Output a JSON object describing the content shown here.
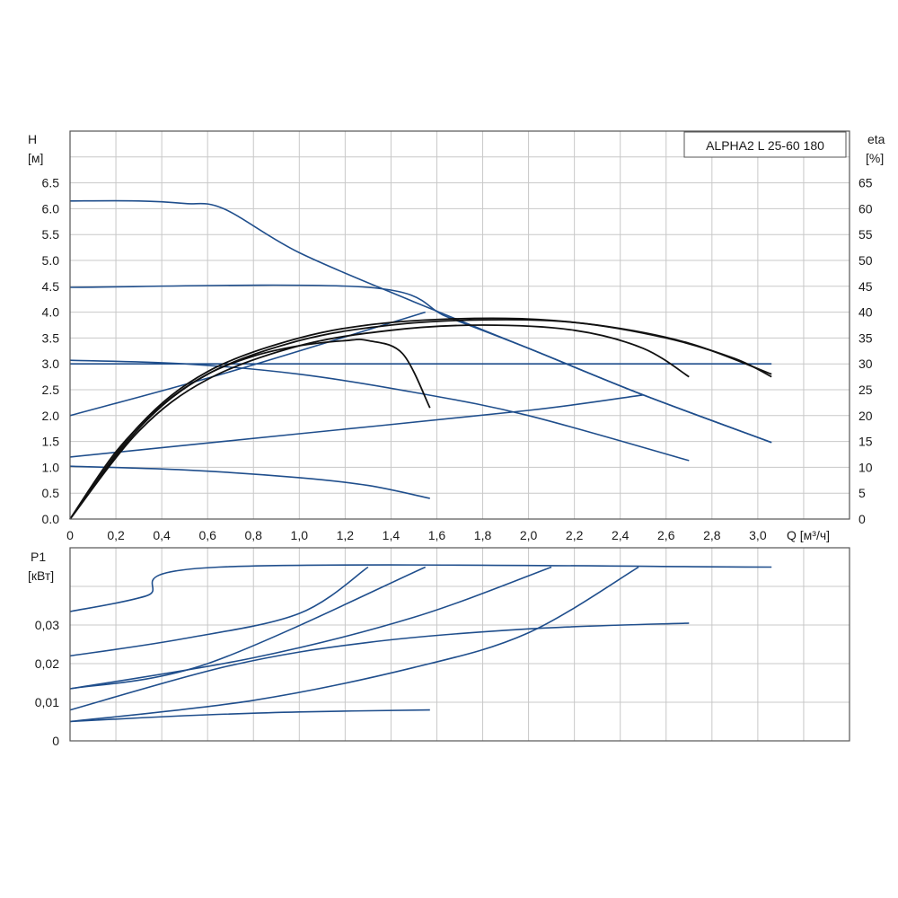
{
  "chart_data": [
    {
      "type": "line",
      "title": "ALPHA2 L 25-60 180",
      "xlabel": "Q [м³/ч]",
      "ylabel_left": [
        "H",
        "[м]"
      ],
      "ylabel_right": [
        "eta",
        "[%]"
      ],
      "xlim": [
        0,
        3.4
      ],
      "ylim_left": [
        0,
        7.5
      ],
      "ylim_right": [
        0,
        75
      ],
      "x_ticks": [
        "0",
        "0,2",
        "0,4",
        "0,6",
        "0,8",
        "1,0",
        "1,2",
        "1,4",
        "1,6",
        "1,8",
        "2,0",
        "2,2",
        "2,4",
        "2,6",
        "2,8",
        "3,0"
      ],
      "y_left_ticks": [
        "0.0",
        "0.5",
        "1.0",
        "1.5",
        "2.0",
        "2.5",
        "3.0",
        "3.5",
        "4.0",
        "4.5",
        "5.0",
        "5.5",
        "6.0",
        "6.5"
      ],
      "y_right_ticks": [
        "0",
        "5",
        "10",
        "15",
        "20",
        "25",
        "30",
        "35",
        "40",
        "45",
        "50",
        "55",
        "60",
        "65"
      ],
      "grid": true,
      "head_series": [
        {
          "points": [
            [
              0,
              6.15
            ],
            [
              0.3,
              6.15
            ],
            [
              0.5,
              6.1
            ],
            [
              0.67,
              6.0
            ],
            [
              1.0,
              5.15
            ],
            [
              1.5,
              4.2
            ],
            [
              2.0,
              3.3
            ],
            [
              2.5,
              2.4
            ],
            [
              3.06,
              1.48
            ]
          ]
        },
        {
          "points": [
            [
              0,
              4.48
            ],
            [
              1.3,
              4.48
            ],
            [
              1.65,
              3.9
            ],
            [
              2.0,
              3.3
            ],
            [
              2.5,
              2.4
            ],
            [
              3.06,
              1.48
            ]
          ]
        },
        {
          "points": [
            [
              0,
              3.0
            ],
            [
              3.06,
              3.0
            ]
          ]
        },
        {
          "points": [
            [
              0,
              3.07
            ],
            [
              0.5,
              3.0
            ],
            [
              1.0,
              2.8
            ],
            [
              1.5,
              2.45
            ],
            [
              2.0,
              2.0
            ],
            [
              2.7,
              1.13
            ]
          ]
        },
        {
          "points": [
            [
              0,
              2.0
            ],
            [
              0.7,
              2.85
            ],
            [
              1.55,
              4.0
            ]
          ]
        },
        {
          "points": [
            [
              0,
              1.2
            ],
            [
              1.0,
              1.65
            ],
            [
              2.0,
              2.1
            ],
            [
              2.5,
              2.4
            ]
          ]
        },
        {
          "points": [
            [
              0,
              1.02
            ],
            [
              0.5,
              0.95
            ],
            [
              1.0,
              0.8
            ],
            [
              1.3,
              0.65
            ],
            [
              1.57,
              0.4
            ]
          ]
        }
      ],
      "eta_series": [
        {
          "points": [
            [
              0,
              0
            ],
            [
              0.2,
              13
            ],
            [
              0.4,
              22
            ],
            [
              0.6,
              28
            ],
            [
              0.8,
              31.5
            ],
            [
              1.0,
              33.5
            ],
            [
              1.2,
              34.5
            ],
            [
              1.3,
              34.5
            ],
            [
              1.45,
              32
            ],
            [
              1.57,
              21.5
            ]
          ]
        },
        {
          "points": [
            [
              0,
              0
            ],
            [
              0.3,
              17
            ],
            [
              0.6,
              27
            ],
            [
              1.0,
              33.5
            ],
            [
              1.4,
              36.5
            ],
            [
              1.8,
              37.5
            ],
            [
              2.2,
              36.5
            ],
            [
              2.5,
              33
            ],
            [
              2.7,
              27.5
            ]
          ]
        },
        {
          "points": [
            [
              0,
              0
            ],
            [
              0.3,
              17.5
            ],
            [
              0.6,
              28
            ],
            [
              1.0,
              34.5
            ],
            [
              1.4,
              37.5
            ],
            [
              1.8,
              38.5
            ],
            [
              2.2,
              38
            ],
            [
              2.6,
              35
            ],
            [
              2.9,
              31
            ],
            [
              3.06,
              27.5
            ]
          ]
        },
        {
          "points": [
            [
              0,
              0
            ],
            [
              0.3,
              18
            ],
            [
              0.6,
              28.5
            ],
            [
              1.0,
              35
            ],
            [
              1.4,
              38
            ],
            [
              1.9,
              38.8
            ],
            [
              2.3,
              37.5
            ],
            [
              2.7,
              34
            ],
            [
              3.06,
              28
            ]
          ]
        }
      ]
    },
    {
      "type": "line",
      "ylabel": [
        "P1",
        "[кВт]"
      ],
      "xlim": [
        0,
        3.4
      ],
      "ylim": [
        0,
        0.05
      ],
      "y_ticks": [
        "0",
        "0,01",
        "0,02",
        "0,03"
      ],
      "grid": true,
      "series": [
        {
          "points": [
            [
              0,
              0.0335
            ],
            [
              0.33,
              0.0375
            ],
            [
              0.65,
              0.045
            ],
            [
              3.06,
              0.045
            ]
          ]
        },
        {
          "points": [
            [
              0,
              0.022
            ],
            [
              0.5,
              0.0265
            ],
            [
              1.0,
              0.033
            ],
            [
              1.3,
              0.045
            ]
          ]
        },
        {
          "points": [
            [
              0,
              0.0135
            ],
            [
              0.6,
              0.02
            ],
            [
              1.55,
              0.045
            ]
          ]
        },
        {
          "points": [
            [
              0,
              0.0135
            ],
            [
              0.8,
              0.0215
            ],
            [
              1.5,
              0.032
            ],
            [
              2.1,
              0.045
            ]
          ]
        },
        {
          "points": [
            [
              0,
              0.008
            ],
            [
              0.7,
              0.0195
            ],
            [
              1.3,
              0.0255
            ],
            [
              2.0,
              0.029
            ],
            [
              2.7,
              0.0305
            ]
          ]
        },
        {
          "points": [
            [
              0,
              0.005
            ],
            [
              0.8,
              0.0105
            ],
            [
              1.5,
              0.019
            ],
            [
              2.0,
              0.028
            ],
            [
              2.48,
              0.045
            ]
          ]
        },
        {
          "points": [
            [
              0,
              0.005
            ],
            [
              0.5,
              0.0065
            ],
            [
              1.0,
              0.0075
            ],
            [
              1.57,
              0.008
            ]
          ]
        }
      ]
    }
  ]
}
